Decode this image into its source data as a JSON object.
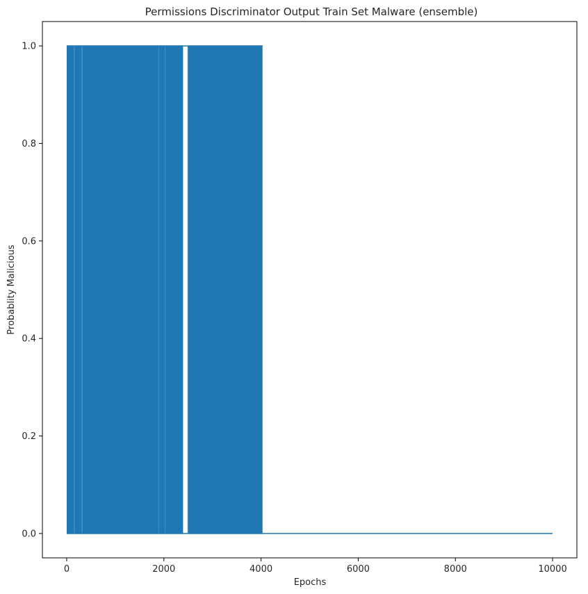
{
  "chart_data": {
    "type": "line",
    "title": "Permissions Discriminator Output Train Set Malware (ensemble)",
    "xlabel": "Epochs",
    "ylabel": "Probablity Malicious",
    "xlim": [
      -500,
      10500
    ],
    "ylim": [
      -0.05,
      1.05
    ],
    "xticks": [
      0,
      2000,
      4000,
      6000,
      8000,
      10000
    ],
    "xtick_labels": [
      "0",
      "2000",
      "4000",
      "6000",
      "8000",
      "10000"
    ],
    "yticks": [
      0.0,
      0.2,
      0.4,
      0.6,
      0.8,
      1.0
    ],
    "ytick_labels": [
      "0.0",
      "0.2",
      "0.4",
      "0.6",
      "0.8",
      "1.0"
    ],
    "grid": false,
    "legend": "none",
    "series": [
      {
        "color": "#1f77b4",
        "description_of_values": "oscillates between 0 and 1 every epoch for epochs 0–4030, then constant 0 through epoch 10000",
        "oscillation_start": 0,
        "oscillation_end": 4030,
        "x_end": 10000,
        "high_value": 1.0,
        "low_value": 0.0,
        "gaps": [
          [
            150,
            165
          ],
          [
            305,
            318
          ],
          [
            1885,
            1892
          ],
          [
            2020,
            2030
          ],
          [
            2395,
            2500
          ]
        ]
      }
    ]
  }
}
